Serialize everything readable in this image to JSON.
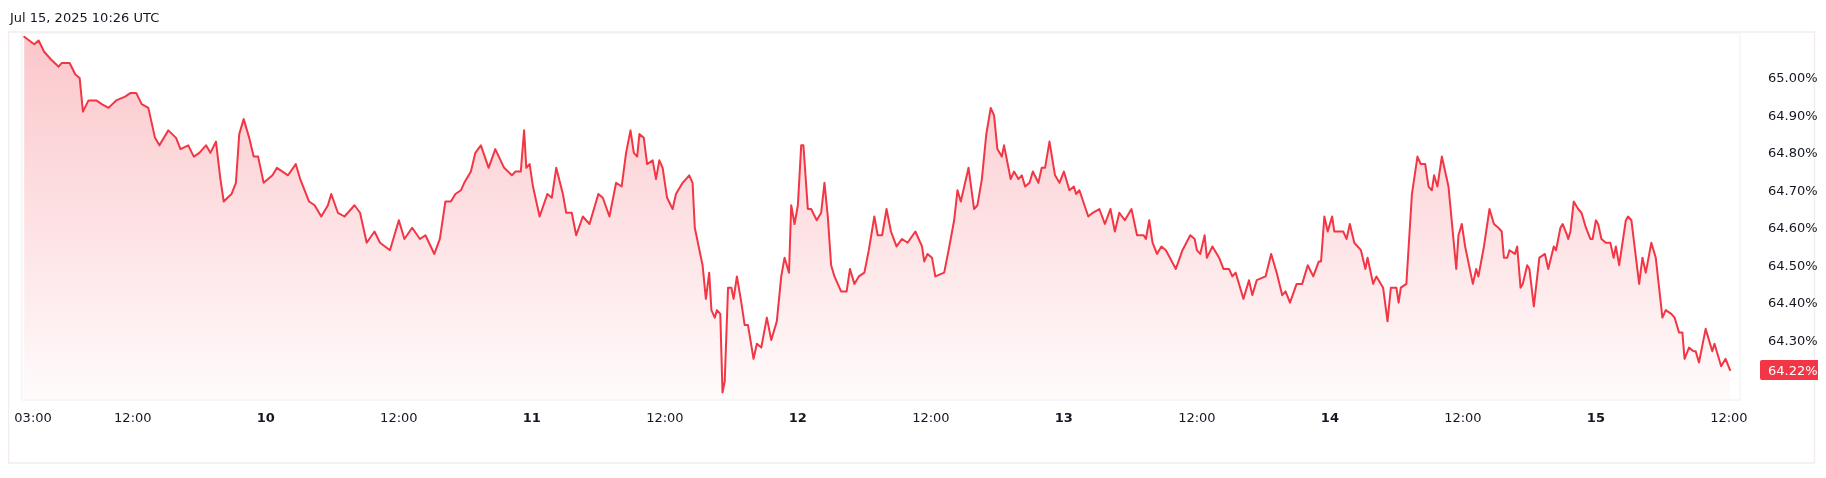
{
  "chart_data": {
    "type": "area",
    "annotations": [
      "Jul 15, 2025 10:26 UTC",
      "64.22%"
    ],
    "xlim": [
      "2025-07-09T02:00",
      "2025-07-15T13:00"
    ],
    "ylim": [
      64.14,
      65.12
    ],
    "xticks": [
      {
        "value": "2025-07-09T03:00",
        "label": "03:00"
      },
      {
        "value": "2025-07-09T12:00",
        "label": "12:00"
      },
      {
        "value": "2025-07-10T00:00",
        "label": "10"
      },
      {
        "value": "2025-07-10T12:00",
        "label": "12:00"
      },
      {
        "value": "2025-07-11T00:00",
        "label": "11"
      },
      {
        "value": "2025-07-11T12:00",
        "label": "12:00"
      },
      {
        "value": "2025-07-12T00:00",
        "label": "12"
      },
      {
        "value": "2025-07-12T12:00",
        "label": "12:00"
      },
      {
        "value": "2025-07-13T00:00",
        "label": "13"
      },
      {
        "value": "2025-07-13T12:00",
        "label": "12:00"
      },
      {
        "value": "2025-07-14T00:00",
        "label": "14"
      },
      {
        "value": "2025-07-14T12:00",
        "label": "12:00"
      },
      {
        "value": "2025-07-15T00:00",
        "label": "15"
      },
      {
        "value": "2025-07-15T12:00",
        "label": "12:00"
      }
    ],
    "yticks": [
      {
        "value": 64.3,
        "label": "64.30%"
      },
      {
        "value": 64.4,
        "label": "64.40%"
      },
      {
        "value": 64.5,
        "label": "64.50%"
      },
      {
        "value": 64.6,
        "label": "64.60%"
      },
      {
        "value": 64.7,
        "label": "64.70%"
      },
      {
        "value": 64.8,
        "label": "64.80%"
      },
      {
        "value": 64.9,
        "label": "64.90%"
      },
      {
        "value": 65.0,
        "label": "65.00%"
      }
    ],
    "series": [
      {
        "color": "#f23645",
        "x": [
          "2025-07-09T02:12",
          "2025-07-09T03:06",
          "2025-07-09T03:30",
          "2025-07-09T04:00",
          "2025-07-09T04:36",
          "2025-07-09T05:18",
          "2025-07-09T05:36",
          "2025-07-09T06:18",
          "2025-07-09T06:48",
          "2025-07-09T07:12",
          "2025-07-09T07:30",
          "2025-07-09T08:00",
          "2025-07-09T08:42",
          "2025-07-09T09:12",
          "2025-07-09T09:48",
          "2025-07-09T10:30",
          "2025-07-09T11:18",
          "2025-07-09T11:48",
          "2025-07-09T12:18",
          "2025-07-09T12:48",
          "2025-07-09T13:24",
          "2025-07-09T14:00",
          "2025-07-09T14:24",
          "2025-07-09T15:12",
          "2025-07-09T15:54",
          "2025-07-09T16:18",
          "2025-07-09T17:00",
          "2025-07-09T17:30",
          "2025-07-09T18:00",
          "2025-07-09T18:36",
          "2025-07-09T19:00",
          "2025-07-09T19:30",
          "2025-07-09T19:54",
          "2025-07-09T20:12",
          "2025-07-09T20:54",
          "2025-07-09T21:18",
          "2025-07-09T21:36",
          "2025-07-09T22:00",
          "2025-07-09T22:30",
          "2025-07-09T22:54",
          "2025-07-09T23:18",
          "2025-07-09T23:48",
          "2025-07-10T00:36",
          "2025-07-10T01:00",
          "2025-07-10T01:30",
          "2025-07-10T02:00",
          "2025-07-10T02:42",
          "2025-07-10T03:06",
          "2025-07-10T03:54",
          "2025-07-10T04:24",
          "2025-07-10T05:00",
          "2025-07-10T05:36",
          "2025-07-10T05:54",
          "2025-07-10T06:30",
          "2025-07-10T07:06",
          "2025-07-10T08:00",
          "2025-07-10T08:30",
          "2025-07-10T09:06",
          "2025-07-10T09:48",
          "2025-07-10T10:18",
          "2025-07-10T11:12",
          "2025-07-10T12:00",
          "2025-07-10T12:30",
          "2025-07-10T13:12",
          "2025-07-10T13:54",
          "2025-07-10T14:24",
          "2025-07-10T15:12",
          "2025-07-10T15:42",
          "2025-07-10T16:12",
          "2025-07-10T16:42",
          "2025-07-10T17:06",
          "2025-07-10T17:36",
          "2025-07-10T17:54",
          "2025-07-10T18:30",
          "2025-07-10T18:54",
          "2025-07-10T19:24",
          "2025-07-10T20:06",
          "2025-07-10T20:42",
          "2025-07-10T21:30",
          "2025-07-10T22:12",
          "2025-07-10T22:30",
          "2025-07-10T23:00",
          "2025-07-10T23:18",
          "2025-07-10T23:30",
          "2025-07-10T23:48",
          "2025-07-11T00:06",
          "2025-07-11T00:42",
          "2025-07-11T01:24",
          "2025-07-11T01:48",
          "2025-07-11T02:12",
          "2025-07-11T02:48",
          "2025-07-11T03:06",
          "2025-07-11T03:36",
          "2025-07-11T04:00",
          "2025-07-11T04:36",
          "2025-07-11T05:12",
          "2025-07-11T06:00",
          "2025-07-11T06:24",
          "2025-07-11T07:00",
          "2025-07-11T07:36",
          "2025-07-11T08:06",
          "2025-07-11T08:30",
          "2025-07-11T08:54",
          "2025-07-11T09:12",
          "2025-07-11T09:30",
          "2025-07-11T09:42",
          "2025-07-11T10:06",
          "2025-07-11T10:24",
          "2025-07-11T10:54",
          "2025-07-11T11:12",
          "2025-07-11T11:30",
          "2025-07-11T11:48",
          "2025-07-11T12:12",
          "2025-07-11T12:42",
          "2025-07-11T13:00",
          "2025-07-11T13:36",
          "2025-07-11T14:12",
          "2025-07-11T14:30",
          "2025-07-11T14:42",
          "2025-07-11T15:24",
          "2025-07-11T15:42",
          "2025-07-11T16:00",
          "2025-07-11T16:12",
          "2025-07-11T16:30",
          "2025-07-11T16:42",
          "2025-07-11T17:00",
          "2025-07-11T17:12",
          "2025-07-11T17:24",
          "2025-07-11T17:42",
          "2025-07-11T18:00",
          "2025-07-11T18:12",
          "2025-07-11T18:30",
          "2025-07-11T18:54",
          "2025-07-11T19:12",
          "2025-07-11T19:30",
          "2025-07-11T20:00",
          "2025-07-11T20:18",
          "2025-07-11T20:42",
          "2025-07-11T21:12",
          "2025-07-11T21:36",
          "2025-07-11T22:06",
          "2025-07-11T22:30",
          "2025-07-11T22:48",
          "2025-07-11T23:12",
          "2025-07-11T23:24",
          "2025-07-11T23:42",
          "2025-07-12T00:00",
          "2025-07-12T00:18",
          "2025-07-12T00:30",
          "2025-07-12T00:54",
          "2025-07-12T01:12",
          "2025-07-12T01:42",
          "2025-07-12T02:06",
          "2025-07-12T02:24",
          "2025-07-12T02:42",
          "2025-07-12T03:00",
          "2025-07-12T03:18",
          "2025-07-12T03:54",
          "2025-07-12T04:24",
          "2025-07-12T04:42",
          "2025-07-12T05:06",
          "2025-07-12T05:30",
          "2025-07-12T06:00",
          "2025-07-12T06:24",
          "2025-07-12T06:54",
          "2025-07-12T07:12",
          "2025-07-12T07:36",
          "2025-07-12T08:00",
          "2025-07-12T08:24",
          "2025-07-12T08:54",
          "2025-07-12T09:24",
          "2025-07-12T09:54",
          "2025-07-12T10:36",
          "2025-07-12T11:12",
          "2025-07-12T11:24",
          "2025-07-12T11:42",
          "2025-07-12T12:06",
          "2025-07-12T12:24",
          "2025-07-12T13:12",
          "2025-07-12T13:36",
          "2025-07-12T14:06",
          "2025-07-12T14:24",
          "2025-07-12T14:42",
          "2025-07-12T15:24",
          "2025-07-12T15:54",
          "2025-07-12T16:12",
          "2025-07-12T16:36",
          "2025-07-12T17:00",
          "2025-07-12T17:24",
          "2025-07-12T17:42",
          "2025-07-12T18:00",
          "2025-07-12T18:24",
          "2025-07-12T18:36",
          "2025-07-12T19:12",
          "2025-07-12T19:30",
          "2025-07-12T19:54",
          "2025-07-12T20:12",
          "2025-07-12T20:30",
          "2025-07-12T20:54",
          "2025-07-12T21:12",
          "2025-07-12T21:42",
          "2025-07-12T22:00",
          "2025-07-12T22:18",
          "2025-07-12T22:42",
          "2025-07-12T23:12",
          "2025-07-12T23:36",
          "2025-07-13T00:00",
          "2025-07-13T00:30",
          "2025-07-13T00:54",
          "2025-07-13T01:06",
          "2025-07-13T01:24",
          "2025-07-13T02:12",
          "2025-07-13T02:36",
          "2025-07-13T03:12",
          "2025-07-13T03:42",
          "2025-07-13T04:12",
          "2025-07-13T04:36",
          "2025-07-13T05:00",
          "2025-07-13T05:30",
          "2025-07-13T06:06",
          "2025-07-13T06:36",
          "2025-07-13T07:12",
          "2025-07-13T07:24",
          "2025-07-13T07:42",
          "2025-07-13T08:00",
          "2025-07-13T08:24",
          "2025-07-13T08:48",
          "2025-07-13T09:12",
          "2025-07-13T10:06",
          "2025-07-13T10:42",
          "2025-07-13T11:24",
          "2025-07-13T11:48",
          "2025-07-13T12:00",
          "2025-07-13T12:18",
          "2025-07-13T12:42",
          "2025-07-13T12:54",
          "2025-07-13T13:24",
          "2025-07-13T14:00",
          "2025-07-13T14:24",
          "2025-07-13T14:54",
          "2025-07-13T15:12",
          "2025-07-13T15:30",
          "2025-07-13T16:12",
          "2025-07-13T16:42",
          "2025-07-13T17:00",
          "2025-07-13T17:24",
          "2025-07-13T18:12",
          "2025-07-13T18:42",
          "2025-07-13T19:12",
          "2025-07-13T19:42",
          "2025-07-13T20:00",
          "2025-07-13T20:24",
          "2025-07-13T21:00",
          "2025-07-13T21:30",
          "2025-07-13T22:00",
          "2025-07-13T22:30",
          "2025-07-13T23:00",
          "2025-07-13T23:12",
          "2025-07-13T23:30",
          "2025-07-13T23:48",
          "2025-07-14T00:12",
          "2025-07-14T00:24",
          "2025-07-14T00:54",
          "2025-07-14T01:12",
          "2025-07-14T01:30",
          "2025-07-14T01:48",
          "2025-07-14T02:12",
          "2025-07-14T02:48",
          "2025-07-14T03:12",
          "2025-07-14T03:24",
          "2025-07-14T03:54",
          "2025-07-14T04:12",
          "2025-07-14T04:48",
          "2025-07-14T05:12",
          "2025-07-14T05:30",
          "2025-07-14T06:00",
          "2025-07-14T06:12",
          "2025-07-14T06:24",
          "2025-07-14T06:54",
          "2025-07-14T07:24",
          "2025-07-14T07:54",
          "2025-07-14T08:12",
          "2025-07-14T08:36",
          "2025-07-14T08:54",
          "2025-07-14T09:12",
          "2025-07-14T09:24",
          "2025-07-14T09:42",
          "2025-07-14T10:06",
          "2025-07-14T10:42",
          "2025-07-14T11:24",
          "2025-07-14T11:36",
          "2025-07-14T11:54",
          "2025-07-14T12:12",
          "2025-07-14T12:54",
          "2025-07-14T13:12",
          "2025-07-14T13:24",
          "2025-07-14T13:54",
          "2025-07-14T14:24",
          "2025-07-14T14:48",
          "2025-07-14T15:12",
          "2025-07-14T15:30",
          "2025-07-14T15:42",
          "2025-07-14T16:00",
          "2025-07-14T16:12",
          "2025-07-14T16:42",
          "2025-07-14T16:54",
          "2025-07-14T17:12",
          "2025-07-14T17:24",
          "2025-07-14T17:48",
          "2025-07-14T18:00",
          "2025-07-14T18:24",
          "2025-07-14T18:54",
          "2025-07-14T19:24",
          "2025-07-14T19:42",
          "2025-07-14T20:12",
          "2025-07-14T20:24",
          "2025-07-14T20:48",
          "2025-07-14T21:00",
          "2025-07-14T21:24",
          "2025-07-14T21:30",
          "2025-07-14T21:42",
          "2025-07-14T22:00",
          "2025-07-14T22:24",
          "2025-07-14T22:42",
          "2025-07-14T23:06",
          "2025-07-14T23:30",
          "2025-07-14T23:42",
          "2025-07-15T00:00",
          "2025-07-15T00:12",
          "2025-07-15T00:30",
          "2025-07-15T00:54",
          "2025-07-15T01:18",
          "2025-07-15T01:36",
          "2025-07-15T01:48",
          "2025-07-15T02:06",
          "2025-07-15T02:42",
          "2025-07-15T02:54",
          "2025-07-15T03:12",
          "2025-07-15T03:54",
          "2025-07-15T04:12",
          "2025-07-15T04:30",
          "2025-07-15T05:00",
          "2025-07-15T05:24",
          "2025-07-15T06:00",
          "2025-07-15T06:18",
          "2025-07-15T06:48",
          "2025-07-15T07:06",
          "2025-07-15T07:30",
          "2025-07-15T07:48",
          "2025-07-15T08:00",
          "2025-07-15T08:24",
          "2025-07-15T08:48",
          "2025-07-15T09:00",
          "2025-07-15T09:18",
          "2025-07-15T09:54",
          "2025-07-15T10:30",
          "2025-07-15T10:42",
          "2025-07-15T11:18",
          "2025-07-15T11:42",
          "2025-07-15T12:06"
        ],
        "values": [
          65.11,
          65.09,
          65.1,
          65.07,
          65.05,
          65.03,
          65.04,
          65.04,
          65.01,
          65.0,
          64.91,
          64.94,
          64.94,
          64.93,
          64.92,
          64.94,
          64.95,
          64.96,
          64.96,
          64.93,
          64.92,
          64.84,
          64.82,
          64.86,
          64.84,
          64.81,
          64.82,
          64.79,
          64.8,
          64.82,
          64.8,
          64.83,
          64.73,
          64.67,
          64.69,
          64.72,
          64.85,
          64.89,
          64.84,
          64.79,
          64.79,
          64.72,
          64.74,
          64.76,
          64.75,
          64.74,
          64.77,
          64.73,
          64.67,
          64.66,
          64.63,
          64.66,
          64.69,
          64.64,
          64.63,
          64.66,
          64.64,
          64.56,
          64.59,
          64.56,
          64.54,
          64.62,
          64.57,
          64.6,
          64.57,
          64.58,
          64.53,
          64.57,
          64.67,
          64.67,
          64.69,
          64.7,
          64.72,
          64.75,
          64.8,
          64.82,
          64.76,
          64.81,
          64.76,
          64.74,
          64.75,
          64.75,
          64.86,
          64.76,
          64.77,
          64.71,
          64.63,
          64.69,
          64.68,
          64.76,
          64.69,
          64.64,
          64.64,
          64.58,
          64.63,
          64.61,
          64.69,
          64.68,
          64.63,
          64.72,
          64.71,
          64.8,
          64.86,
          64.8,
          64.79,
          64.85,
          64.84,
          64.77,
          64.78,
          64.73,
          64.78,
          64.76,
          64.68,
          64.65,
          64.69,
          64.72,
          64.74,
          64.72,
          64.6,
          64.5,
          64.41,
          64.48,
          64.38,
          64.36,
          64.38,
          64.37,
          64.16,
          64.19,
          64.44,
          64.44,
          64.41,
          64.47,
          64.4,
          64.34,
          64.34,
          64.25,
          64.29,
          64.28,
          64.36,
          64.3,
          64.35,
          64.47,
          64.52,
          64.48,
          64.66,
          64.61,
          64.66,
          64.82,
          64.82,
          64.65,
          64.65,
          64.62,
          64.64,
          64.72,
          64.63,
          64.5,
          64.47,
          64.43,
          64.43,
          64.49,
          64.45,
          64.47,
          64.48,
          64.54,
          64.63,
          64.58,
          64.58,
          64.65,
          64.59,
          64.55,
          64.57,
          64.56,
          64.59,
          64.55,
          64.51,
          64.53,
          64.52,
          64.47,
          64.48,
          64.54,
          64.62,
          64.7,
          64.67,
          64.76,
          64.65,
          64.66,
          64.73,
          64.85,
          64.92,
          64.9,
          64.81,
          64.79,
          64.82,
          64.73,
          64.75,
          64.73,
          64.74,
          64.71,
          64.72,
          64.75,
          64.72,
          64.76,
          64.76,
          64.83,
          64.74,
          64.72,
          64.75,
          64.7,
          64.71,
          64.69,
          64.7,
          64.63,
          64.64,
          64.65,
          64.61,
          64.65,
          64.59,
          64.64,
          64.62,
          64.65,
          64.58,
          64.58,
          64.57,
          64.62,
          64.56,
          64.53,
          64.55,
          64.54,
          64.49,
          64.54,
          64.58,
          64.57,
          64.54,
          64.53,
          64.58,
          64.52,
          64.55,
          64.52,
          64.49,
          64.49,
          64.47,
          64.48,
          64.41,
          64.46,
          64.42,
          64.46,
          64.47,
          64.53,
          64.48,
          64.42,
          64.43,
          64.4,
          64.45,
          64.45,
          64.5,
          64.47,
          64.51,
          64.51,
          64.63,
          64.59,
          64.63,
          64.59,
          64.59,
          64.59,
          64.57,
          64.61,
          64.56,
          64.54,
          64.49,
          64.52,
          64.45,
          64.47,
          64.44,
          64.35,
          64.44,
          64.44,
          64.4,
          64.44,
          64.45,
          64.69,
          64.79,
          64.77,
          64.77,
          64.71,
          64.7,
          64.74,
          64.71,
          64.79,
          64.71,
          64.49,
          64.58,
          64.61,
          64.55,
          64.45,
          64.49,
          64.47,
          64.55,
          64.65,
          64.61,
          64.6,
          64.59,
          64.52,
          64.52,
          64.54,
          64.53,
          64.55,
          64.44,
          64.45,
          64.5,
          64.49,
          64.39,
          64.52,
          64.53,
          64.49,
          64.55,
          64.54,
          64.6,
          64.61,
          64.58,
          64.57,
          64.59,
          64.67,
          64.65,
          64.64,
          64.6,
          64.57,
          64.57,
          64.62,
          64.61,
          64.57,
          64.56,
          64.56,
          64.52,
          64.55,
          64.5,
          64.62,
          64.63,
          64.62,
          64.45,
          64.52,
          64.48,
          64.56,
          64.52,
          64.36,
          64.38,
          64.37,
          64.36,
          64.32,
          64.32,
          64.25,
          64.28,
          64.27,
          64.27,
          64.24,
          64.33,
          64.27,
          64.29,
          64.23,
          64.25,
          64.22
        ]
      }
    ]
  }
}
